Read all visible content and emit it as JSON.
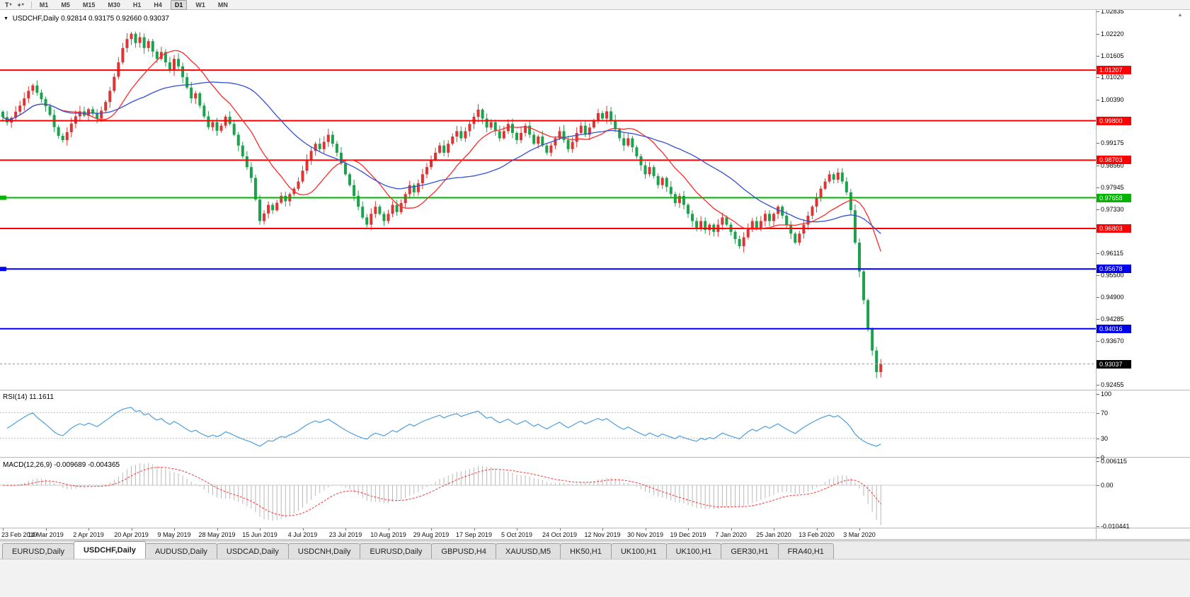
{
  "icons": {
    "dropdown_caret": "▾",
    "symbol_caret": "▼",
    "scroll_up": "▲"
  },
  "toolbar": {
    "tools": [
      {
        "name": "text-tool",
        "glyph": "T"
      },
      {
        "name": "crosshair-tool",
        "glyph": "+"
      }
    ],
    "timeframes": [
      "M1",
      "M5",
      "M15",
      "M30",
      "H1",
      "H4",
      "D1",
      "W1",
      "MN"
    ],
    "active_timeframe": "D1"
  },
  "chart": {
    "symbol": "USDCHF,Daily",
    "ohlc": "0.92814 0.93175 0.92660 0.93037",
    "open": "0.92814",
    "high": "0.93175",
    "low": "0.92660",
    "close": "0.93037",
    "axis_ticks": [
      "1.02835",
      "1.02220",
      "1.01605",
      "1.01020",
      "1.00390",
      "0.99175",
      "0.98560",
      "0.97945",
      "0.97330",
      "0.96115",
      "0.95500",
      "0.94900",
      "0.94285",
      "0.93670",
      "0.92455"
    ],
    "levels": [
      {
        "value": 1.01207,
        "label": "1.01207",
        "color": "#FF0000",
        "left_marker": false
      },
      {
        "value": 0.998,
        "label": "0.99800",
        "color": "#FF0000",
        "left_marker": false
      },
      {
        "value": 0.98703,
        "label": "0.98703",
        "color": "#FF0000",
        "left_marker": false
      },
      {
        "value": 0.97658,
        "label": "0.97658",
        "color": "#00B400",
        "left_marker": true
      },
      {
        "value": 0.96803,
        "label": "0.96803",
        "color": "#FF0000",
        "left_marker": false
      },
      {
        "value": 0.95678,
        "label": "0.95678",
        "color": "#0000EE",
        "left_marker": true
      },
      {
        "value": 0.94016,
        "label": "0.94016",
        "color": "#0000EE",
        "left_marker": false
      }
    ],
    "current_price": {
      "value": 0.93037,
      "label": "0.93037",
      "color": "#000000"
    }
  },
  "rsi": {
    "label": "RSI(14) 11.1611",
    "ticks": [
      {
        "v": 100,
        "t": "100"
      },
      {
        "v": 70,
        "t": "70"
      },
      {
        "v": 30,
        "t": "30"
      },
      {
        "v": 0,
        "t": "0"
      }
    ],
    "levels": [
      70,
      30
    ]
  },
  "macd": {
    "label": "MACD(12,26,9) -0.009689 -0.004365",
    "ticks": [
      {
        "v": 0.006115,
        "t": "0.006115"
      },
      {
        "v": 0,
        "t": "0.00"
      },
      {
        "v": -0.010441,
        "t": "-0.010441"
      }
    ]
  },
  "tabs": [
    {
      "label": "EURUSD,Daily",
      "active": false
    },
    {
      "label": "USDCHF,Daily",
      "active": true
    },
    {
      "label": "AUDUSD,Daily",
      "active": false
    },
    {
      "label": "USDCAD,Daily",
      "active": false
    },
    {
      "label": "USDCNH,Daily",
      "active": false
    },
    {
      "label": "EURUSD,Daily",
      "active": false
    },
    {
      "label": "GBPUSD,H4",
      "active": false
    },
    {
      "label": "XAUUSD,M5",
      "active": false
    },
    {
      "label": "HK50,H1",
      "active": false
    },
    {
      "label": "UK100,H1",
      "active": false
    },
    {
      "label": "UK100,H1",
      "active": false
    },
    {
      "label": "GER30,H1",
      "active": false
    },
    {
      "label": "FRA40,H1",
      "active": false
    }
  ],
  "colors": {
    "bull": "#DE3434",
    "bear": "#1CA24C",
    "ma_fast": "#FF2A2A",
    "ma_slow": "#3350D2",
    "rsi_line": "#4C9EE0",
    "rsi_level": "#BDBDBD",
    "macd_hist": "#B9B9B9",
    "macd_signal": "#FF3535",
    "macd_zero": "#C8C8C8",
    "current_dash": "#9A9A9A"
  },
  "chart_data": {
    "type": "candlestick",
    "symbol": "USDCHF",
    "timeframe": "Daily",
    "y_range": [
      0.9232,
      1.0288
    ],
    "x_labels": [
      "23 Feb 2019",
      "14 Mar 2019",
      "2 Apr 2019",
      "20 Apr 2019",
      "9 May 2019",
      "28 May 2019",
      "15 Jun 2019",
      "4 Jul 2019",
      "23 Jul 2019",
      "10 Aug 2019",
      "29 Aug 2019",
      "17 Sep 2019",
      "5 Oct 2019",
      "24 Oct 2019",
      "12 Nov 2019",
      "30 Nov 2019",
      "19 Dec 2019",
      "7 Jan 2020",
      "25 Jan 2020",
      "13 Feb 2020",
      "3 Mar 2020"
    ],
    "label_every_n_candles": 10,
    "closes": [
      0.999,
      0.9975,
      0.9988,
      1.0005,
      1.0022,
      1.0042,
      1.0063,
      1.0078,
      1.0058,
      1.004,
      1.002,
      0.9996,
      0.9962,
      0.9938,
      0.9926,
      0.9948,
      0.9972,
      0.9992,
      1.0006,
      0.9994,
      1.0012,
      1.0,
      0.9986,
      1.0008,
      1.0032,
      1.0063,
      1.0102,
      1.0142,
      1.0182,
      1.0207,
      1.0222,
      1.0196,
      1.0212,
      1.0182,
      1.0201,
      1.0172,
      1.0152,
      1.0171,
      1.0142,
      1.012,
      1.0152,
      1.0131,
      1.0101,
      1.0072,
      1.0042,
      1.0056,
      1.0022,
      0.9992,
      0.9962,
      0.9976,
      0.9952,
      0.9966,
      0.9991,
      0.9971,
      0.9941,
      0.9911,
      0.9881,
      0.9851,
      0.9821,
      0.9761,
      0.9701,
      0.9722,
      0.9746,
      0.9731,
      0.9752,
      0.9771,
      0.9756,
      0.9776,
      0.9791,
      0.9811,
      0.9841,
      0.9871,
      0.9896,
      0.9916,
      0.9901,
      0.9921,
      0.9941,
      0.9916,
      0.9891,
      0.9861,
      0.9831,
      0.9801,
      0.9771,
      0.9741,
      0.9711,
      0.9691,
      0.9721,
      0.9741,
      0.9721,
      0.9701,
      0.9721,
      0.9746,
      0.9726,
      0.9751,
      0.9776,
      0.9801,
      0.9781,
      0.9806,
      0.9831,
      0.9851,
      0.9871,
      0.9891,
      0.9911,
      0.9891,
      0.9916,
      0.9936,
      0.9951,
      0.9931,
      0.9951,
      0.9971,
      0.9991,
      1.0011,
      0.9986,
      0.9961,
      0.9976,
      0.9951,
      0.9931,
      0.9951,
      0.9971,
      0.9946,
      0.9926,
      0.9946,
      0.9966,
      0.9941,
      0.9916,
      0.9936,
      0.9911,
      0.9891,
      0.9911,
      0.9931,
      0.9951,
      0.9926,
      0.9901,
      0.9921,
      0.9946,
      0.9966,
      0.9941,
      0.9961,
      0.9981,
      1.0001,
      0.9986,
      1.0006,
      0.9981,
      0.9956,
      0.9931,
      0.9911,
      0.9931,
      0.9906,
      0.9881,
      0.9856,
      0.9831,
      0.9851,
      0.9826,
      0.9801,
      0.9821,
      0.9796,
      0.9776,
      0.9751,
      0.9771,
      0.9746,
      0.9721,
      0.9701,
      0.9681,
      0.9701,
      0.9676,
      0.9691,
      0.9671,
      0.9691,
      0.9711,
      0.9691,
      0.9671,
      0.9651,
      0.9631,
      0.9656,
      0.9681,
      0.9701,
      0.9681,
      0.9701,
      0.9721,
      0.9701,
      0.9721,
      0.9741,
      0.9716,
      0.9691,
      0.9666,
      0.9641,
      0.9666,
      0.9691,
      0.9716,
      0.9741,
      0.9766,
      0.9791,
      0.9811,
      0.9831,
      0.9816,
      0.9836,
      0.9811,
      0.9781,
      0.9731,
      0.9641,
      0.9561,
      0.9481,
      0.9401,
      0.9341,
      0.9281,
      0.93037
    ],
    "last_candle": {
      "open": 0.92814,
      "high": 0.93175,
      "low": 0.9266,
      "close": 0.93037
    },
    "horizontal_lines": [
      1.01207,
      0.998,
      0.98703,
      0.97658,
      0.96803,
      0.95678,
      0.94016
    ],
    "indicators": {
      "ma_fast_period": 14,
      "ma_slow_period": 34,
      "rsi_period": 14,
      "rsi_last": "11.1611",
      "macd_fast": 12,
      "macd_slow": 26,
      "macd_signal_period": 9,
      "macd_last_main": "-0.009689",
      "macd_last_signal": "-0.004365"
    }
  }
}
